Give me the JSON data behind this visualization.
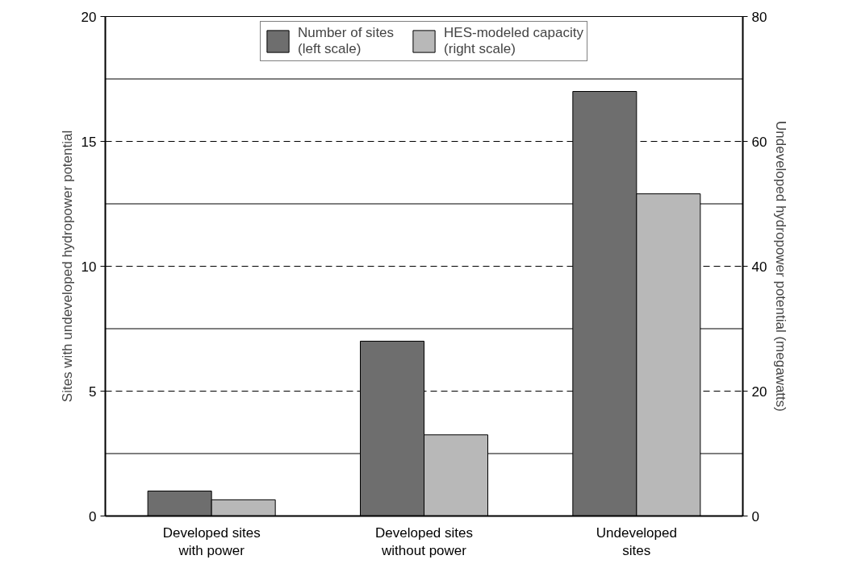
{
  "chart_data": {
    "type": "bar",
    "categories": [
      "Developed sites\nwith power",
      "Developed sites\nwithout power",
      "Undeveloped\nsites"
    ],
    "series": [
      {
        "name": "Number of sites\n(left scale)",
        "color": "#6e6e6e",
        "values": [
          1,
          7,
          17
        ]
      },
      {
        "name": "HES-modeled capacity\n(right scale)",
        "color": "#b8b8b8",
        "values": [
          2.6,
          13,
          51.6
        ],
        "axis": "y2"
      }
    ],
    "ylabel": "Sites with undeveloped hydropower potential",
    "y2label": "Undeveloped hydropower potential (megawatts)",
    "ylim": [
      0,
      20
    ],
    "yticks": [
      0,
      {
        "value": 2.5,
        "label": null
      },
      5,
      {
        "value": 7.5,
        "label": null
      },
      10,
      {
        "value": 12.5,
        "label": null
      },
      15,
      {
        "value": 17.5,
        "label": null
      },
      20
    ],
    "y2lim": [
      0,
      80
    ],
    "y2ticks": [
      0,
      20,
      40,
      60,
      80
    ],
    "grid": "y",
    "legend": "top"
  }
}
